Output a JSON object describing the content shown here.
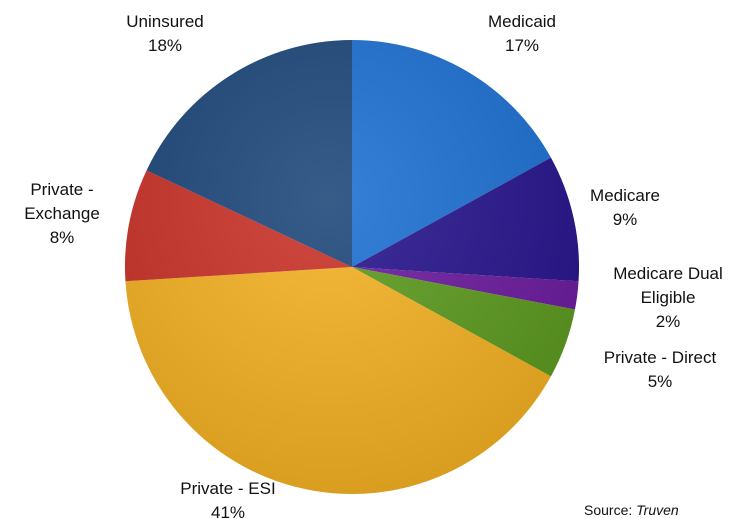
{
  "chart_data": {
    "type": "pie",
    "categories": [
      "Medicaid",
      "Medicare",
      "Medicare Dual Eligible",
      "Private - Direct",
      "Private - ESI",
      "Private - Exchange",
      "Uninsured"
    ],
    "values": [
      17,
      9,
      2,
      5,
      41,
      8,
      18
    ],
    "value_labels": [
      "17%",
      "9%",
      "2%",
      "5%",
      "41%",
      "8%",
      "18%"
    ],
    "colors": [
      "#1c6fd2",
      "#26138c",
      "#6b1a9e",
      "#5c9a1e",
      "#f4b122",
      "#c93127",
      "#1d4679"
    ],
    "source_prefix": "Source:",
    "source_name": "Truven"
  }
}
